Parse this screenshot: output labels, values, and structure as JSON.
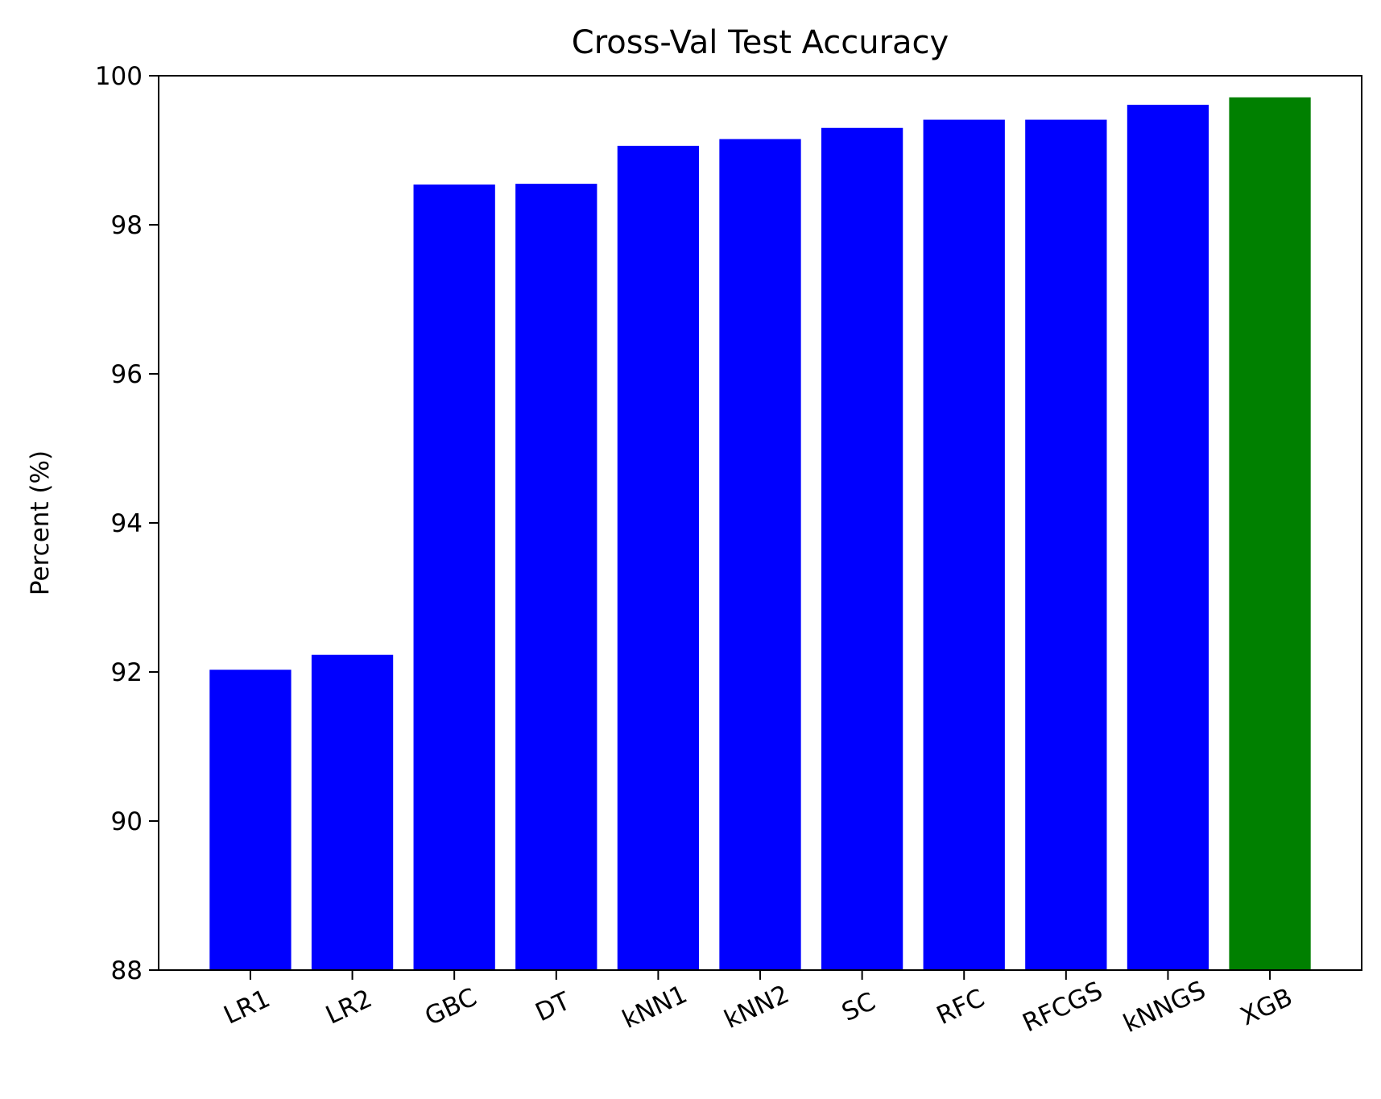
{
  "chart_data": {
    "type": "bar",
    "title": "Cross-Val Test Accuracy",
    "xlabel": "",
    "ylabel": "Percent (%)",
    "categories": [
      "LR1",
      "LR2",
      "GBC",
      "DT",
      "kNN1",
      "kNN2",
      "SC",
      "RFC",
      "RFCGS",
      "kNNGS",
      "XGB"
    ],
    "values": [
      92.03,
      92.23,
      98.54,
      98.55,
      99.06,
      99.15,
      99.3,
      99.41,
      99.41,
      99.61,
      99.71
    ],
    "bar_colors": [
      "#0000ff",
      "#0000ff",
      "#0000ff",
      "#0000ff",
      "#0000ff",
      "#0000ff",
      "#0000ff",
      "#0000ff",
      "#0000ff",
      "#0000ff",
      "#008000"
    ],
    "ylim": [
      88,
      100
    ],
    "yticks": [
      88,
      90,
      92,
      94,
      96,
      98,
      100
    ],
    "grid": false,
    "legend": "none",
    "xtick_rotation_deg": -25
  }
}
